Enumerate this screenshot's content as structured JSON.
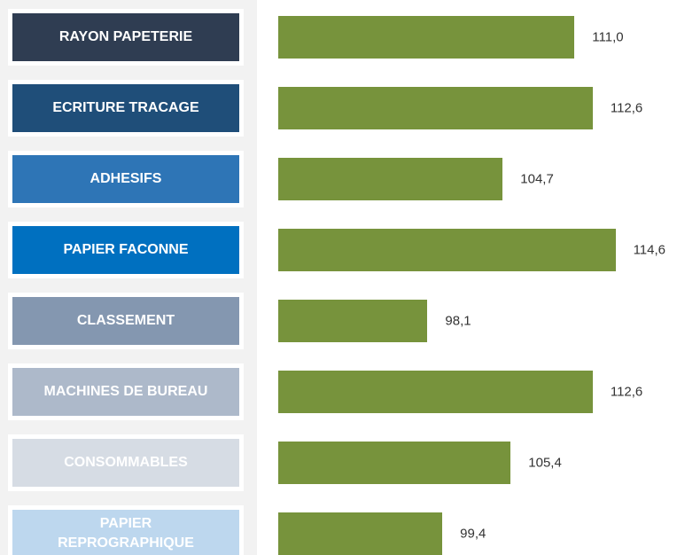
{
  "chart_data": {
    "type": "bar",
    "orientation": "horizontal",
    "categories": [
      "RAYON PAPETERIE",
      "ECRITURE TRACAGE",
      "ADHESIFS",
      "PAPIER FACONNE",
      "CLASSEMENT",
      "MACHINES DE BUREAU",
      "CONSOMMABLES",
      "PAPIER REPROGRAPHIQUE"
    ],
    "category_colors": [
      "#2f3d52",
      "#1f4e79",
      "#2e75b6",
      "#0070c0",
      "#8497b0",
      "#adb9ca",
      "#d6dce4",
      "#bdd7ee"
    ],
    "values": [
      111.0,
      112.6,
      104.7,
      114.6,
      98.1,
      112.6,
      105.4,
      99.4
    ],
    "value_labels": [
      "111,0",
      "112,6",
      "104,7",
      "114,6",
      "98,1",
      "112,6",
      "105,4",
      "99,4"
    ],
    "color": "#77933c",
    "xlim": [
      85,
      120
    ]
  }
}
